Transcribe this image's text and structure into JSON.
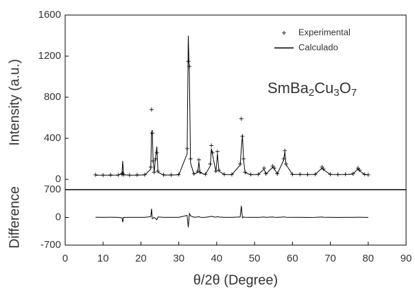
{
  "chart_data": [
    {
      "type": "line",
      "ylabel": "Intensity (a.u.)",
      "annotation": "SmBa2Cu3O7",
      "legend": "upper right",
      "x": [
        8,
        10,
        12,
        14,
        15.0,
        15.2,
        15.4,
        17,
        19,
        21,
        22.6,
        22.8,
        23.0,
        23.2,
        23.5,
        23.9,
        24.2,
        24.5,
        26,
        28,
        30,
        32.2,
        32.5,
        32.8,
        33.1,
        34,
        35.0,
        35.3,
        35.6,
        37,
        38.3,
        38.6,
        38.9,
        39.8,
        40.2,
        40.6,
        42,
        44,
        46.2,
        46.5,
        46.8,
        47.1,
        47.5,
        49,
        51,
        52.5,
        53,
        54.8,
        55.2,
        56,
        57.7,
        58.0,
        58.3,
        60,
        62,
        64,
        66,
        67.8,
        68.2,
        70,
        72,
        74,
        76,
        77.3,
        77.7,
        79,
        80
      ],
      "series": [
        {
          "name": "Experimental",
          "marker": "+",
          "color": "#222222",
          "values": [
            45,
            42,
            44,
            43,
            50,
            60,
            45,
            42,
            44,
            46,
            120,
            680,
            450,
            180,
            70,
            200,
            260,
            80,
            45,
            44,
            48,
            300,
            1150,
            1100,
            200,
            55,
            80,
            190,
            70,
            50,
            150,
            330,
            260,
            80,
            270,
            90,
            50,
            48,
            150,
            590,
            420,
            200,
            70,
            48,
            50,
            110,
            55,
            130,
            110,
            55,
            200,
            280,
            150,
            50,
            50,
            48,
            50,
            120,
            100,
            50,
            48,
            50,
            55,
            110,
            90,
            50,
            45
          ]
        },
        {
          "name": "Calculado",
          "color": "#000000",
          "values": [
            40,
            40,
            40,
            41,
            60,
            180,
            45,
            40,
            41,
            43,
            100,
            460,
            480,
            200,
            70,
            230,
            320,
            70,
            42,
            42,
            45,
            250,
            1400,
            1000,
            160,
            50,
            70,
            170,
            65,
            48,
            130,
            300,
            240,
            75,
            250,
            80,
            48,
            46,
            140,
            300,
            430,
            190,
            65,
            46,
            48,
            100,
            52,
            120,
            105,
            52,
            190,
            270,
            145,
            48,
            48,
            47,
            48,
            110,
            95,
            48,
            47,
            48,
            52,
            105,
            85,
            48,
            44
          ]
        }
      ],
      "xlim": [
        0,
        90
      ],
      "ylim": [
        -100,
        1600
      ],
      "yticks": [
        0,
        400,
        800,
        1200,
        1600
      ]
    },
    {
      "type": "line",
      "ylabel": "Difference",
      "xlabel": "θ/2θ (Degree)",
      "x": [
        8,
        10,
        12,
        14,
        15.0,
        15.2,
        15.4,
        17,
        19,
        21,
        22.6,
        22.8,
        23.0,
        23.2,
        23.5,
        23.9,
        24.2,
        24.5,
        26,
        28,
        30,
        32.2,
        32.5,
        32.8,
        33.1,
        34,
        35.0,
        35.3,
        35.6,
        37,
        38.3,
        38.6,
        38.9,
        39.8,
        40.2,
        40.6,
        42,
        44,
        46.2,
        46.5,
        46.8,
        47.1,
        47.5,
        49,
        51,
        52.5,
        53,
        54.8,
        55.2,
        56,
        57.7,
        58.0,
        58.3,
        60,
        62,
        64,
        66,
        67.8,
        68.2,
        70,
        72,
        74,
        76,
        77.3,
        77.7,
        79,
        80
      ],
      "series": [
        {
          "color": "#000000",
          "values": [
            5,
            2,
            4,
            2,
            -10,
            -120,
            0,
            2,
            3,
            3,
            20,
            220,
            -30,
            -20,
            0,
            -30,
            -60,
            10,
            3,
            2,
            3,
            50,
            -250,
            100,
            40,
            5,
            10,
            20,
            5,
            2,
            20,
            30,
            20,
            5,
            20,
            10,
            2,
            2,
            10,
            290,
            -10,
            10,
            5,
            2,
            2,
            10,
            3,
            10,
            5,
            3,
            10,
            10,
            5,
            2,
            2,
            1,
            2,
            10,
            5,
            2,
            1,
            2,
            3,
            5,
            5,
            2,
            1
          ]
        }
      ],
      "xlim": [
        0,
        90
      ],
      "xticks": [
        0,
        10,
        20,
        30,
        40,
        50,
        60,
        70,
        80,
        90
      ],
      "ylim": [
        -700,
        700
      ],
      "yticks": [
        -700,
        0,
        700
      ]
    }
  ]
}
